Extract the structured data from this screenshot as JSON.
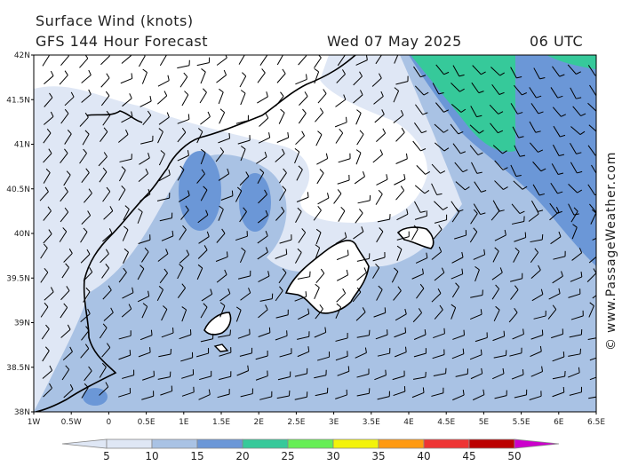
{
  "header": {
    "title": "Surface Wind (knots)",
    "subtitle": "GFS 144 Hour Forecast",
    "date": "Wed 07 May 2025",
    "time": "06 UTC"
  },
  "axes": {
    "lat_labels": [
      "42N",
      "41.5N",
      "41N",
      "40.5N",
      "40N",
      "39.5N",
      "39N",
      "38.5N",
      "38N"
    ],
    "lon_labels": [
      "1W",
      "0.5W",
      "0",
      "0.5E",
      "1E",
      "1.5E",
      "2E",
      "2.5E",
      "3E",
      "3.5E",
      "4E",
      "4.5E",
      "5E",
      "5.5E",
      "6E",
      "6.5E"
    ]
  },
  "scale": {
    "labels": [
      "5",
      "10",
      "15",
      "20",
      "25",
      "30",
      "35",
      "40",
      "45",
      "50"
    ],
    "colors": [
      "#dfe7f5",
      "#a9c2e4",
      "#6b97d7",
      "#36c99a",
      "#66ee55",
      "#f3f30a",
      "#ff9a11",
      "#ee3333",
      "#bb0000",
      "#cc00cc"
    ]
  },
  "colors": {
    "band_10": "#dfe7f5",
    "band_15": "#a9c2e4",
    "band_20": "#6b97d7",
    "band_25": "#36c99a"
  },
  "credit": "© www.PassageWeather.com"
}
